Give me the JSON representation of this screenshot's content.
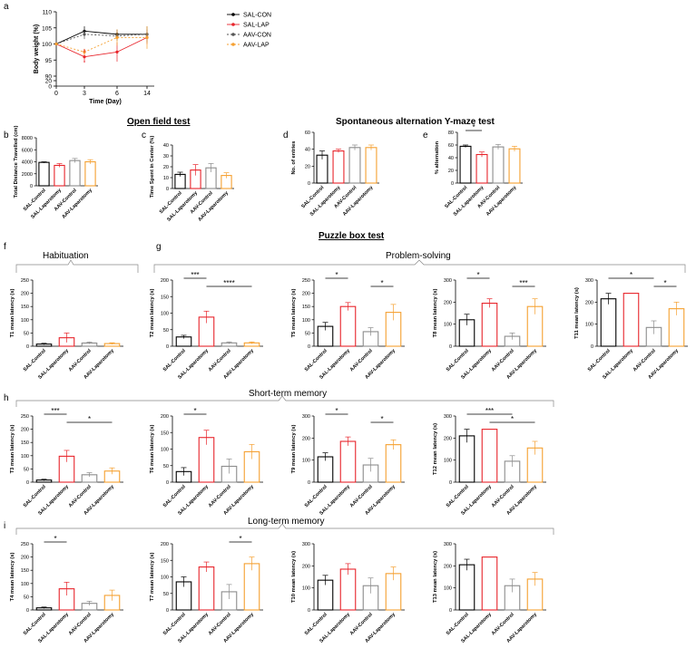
{
  "colors": {
    "sal_con": "#000000",
    "sal_lap": "#e8242b",
    "aav_con": "#8c8c8c",
    "aav_lap": "#f5a030"
  },
  "groups": [
    "SAL-Control",
    "SAL-Laparotomy",
    "AAV-Control",
    "AAV-Laparotomy"
  ],
  "section_titles": {
    "open_field": "Open field test",
    "yspont": "Spontaneous alternation Y-maze test",
    "puzzle": "Puzzle box test",
    "habituation": "Habituation",
    "problem": "Problem-solving",
    "short": "Short-term memory",
    "long": "Long-term memory"
  },
  "panel_letters": {
    "a": "a",
    "b": "b",
    "c": "c",
    "d": "d",
    "e": "e",
    "f": "f",
    "g": "g",
    "h": "h",
    "i": "i"
  },
  "chart_data": [
    {
      "id": "a",
      "type": "line",
      "xlabel": "Time (Day)",
      "ylabel": "Body weight (%)",
      "x": [
        0,
        3,
        6,
        14
      ],
      "xticks": [
        "0",
        "3",
        "6",
        "14"
      ],
      "yticks": [
        "0",
        "20",
        "90",
        "95",
        "100",
        "105",
        "110"
      ],
      "series": [
        {
          "name": "SAL-CON",
          "values": [
            100,
            104,
            103,
            103
          ],
          "err": [
            0,
            1.5,
            1.5,
            1.5
          ]
        },
        {
          "name": "SAL-LAP",
          "values": [
            100,
            96,
            97.5,
            102
          ],
          "err": [
            0,
            1.5,
            3,
            2
          ]
        },
        {
          "name": "AAV-CON",
          "values": [
            100,
            103,
            102.5,
            103
          ],
          "err": [
            0,
            1.5,
            1.5,
            2.5
          ]
        },
        {
          "name": "AAV-LAP",
          "values": [
            100,
            97.5,
            102,
            102
          ],
          "err": [
            0,
            1,
            2.5,
            3.5
          ]
        }
      ],
      "annotations": [
        "a",
        "*"
      ]
    },
    {
      "id": "b",
      "type": "bar",
      "ylabel": "Total Distance Travelled (cm)",
      "ymax": 8000,
      "yticks": [
        "0",
        "2000",
        "4000",
        "6000",
        "8000"
      ],
      "values": [
        3900,
        3400,
        4200,
        4000
      ],
      "err": [
        100,
        300,
        350,
        350
      ],
      "sig": []
    },
    {
      "id": "c",
      "type": "bar",
      "ylabel": "Time Spent in Center (%)",
      "ymax": 40,
      "yticks": [
        "0",
        "10",
        "20",
        "30",
        "40"
      ],
      "values": [
        13,
        17,
        19,
        12
      ],
      "err": [
        2,
        5,
        4,
        2.5
      ],
      "sig": []
    },
    {
      "id": "d",
      "type": "bar",
      "ylabel": "No. of entries",
      "ymax": 60,
      "yticks": [
        "0",
        "20",
        "40",
        "60"
      ],
      "values": [
        33,
        38,
        42,
        42
      ],
      "err": [
        5,
        2,
        3,
        3
      ],
      "sig": []
    },
    {
      "id": "e",
      "type": "bar",
      "ylabel": "% alternation",
      "ymax": 80,
      "yticks": [
        "0",
        "20",
        "40",
        "60",
        "80"
      ],
      "values": [
        58,
        45,
        57,
        54
      ],
      "err": [
        2,
        4,
        4,
        4
      ],
      "sig": [
        {
          "from": 0,
          "to": 1,
          "label": "*"
        }
      ]
    },
    {
      "id": "t1",
      "type": "bar",
      "ylabel": "T1 mean latency (s)",
      "ymax": 250,
      "yticks": [
        "0",
        "50",
        "100",
        "150",
        "200",
        "250"
      ],
      "values": [
        8,
        32,
        12,
        10
      ],
      "err": [
        3,
        18,
        4,
        3
      ],
      "sig": []
    },
    {
      "id": "t2",
      "type": "bar",
      "ylabel": "T2 mean latency (s)",
      "ymax": 200,
      "yticks": [
        "0",
        "50",
        "100",
        "150",
        "200"
      ],
      "values": [
        28,
        88,
        10,
        10
      ],
      "err": [
        5,
        18,
        3,
        3
      ],
      "sig": [
        {
          "from": 0,
          "to": 1,
          "label": "***"
        },
        {
          "from": 1,
          "to": 3,
          "label": "****"
        }
      ]
    },
    {
      "id": "t5",
      "type": "bar",
      "ylabel": "T5 mean latency (s)",
      "ymax": 250,
      "yticks": [
        "0",
        "50",
        "100",
        "150",
        "200",
        "250"
      ],
      "values": [
        75,
        150,
        55,
        128
      ],
      "err": [
        15,
        15,
        15,
        30
      ],
      "sig": [
        {
          "from": 0,
          "to": 1,
          "label": "*"
        },
        {
          "from": 2,
          "to": 3,
          "label": "*"
        }
      ]
    },
    {
      "id": "t8",
      "type": "bar",
      "ylabel": "T8 mean latency (s)",
      "ymax": 300,
      "yticks": [
        "0",
        "100",
        "200",
        "300"
      ],
      "values": [
        120,
        195,
        45,
        180
      ],
      "err": [
        25,
        20,
        15,
        35
      ],
      "sig": [
        {
          "from": 0,
          "to": 1,
          "label": "*"
        },
        {
          "from": 2,
          "to": 3,
          "label": "***"
        }
      ]
    },
    {
      "id": "t11",
      "type": "bar",
      "ylabel": "T11 mean latency (s)",
      "ymax": 300,
      "yticks": [
        "0",
        "100",
        "200",
        "300"
      ],
      "values": [
        215,
        240,
        85,
        170
      ],
      "err": [
        25,
        0,
        30,
        30
      ],
      "sig": [
        {
          "from": 0,
          "to": 2,
          "label": "*"
        },
        {
          "from": 2,
          "to": 3,
          "label": "*"
        }
      ]
    },
    {
      "id": "t3",
      "type": "bar",
      "ylabel": "T3 mean latency (s)",
      "ymax": 250,
      "yticks": [
        "0",
        "50",
        "100",
        "150",
        "200",
        "250"
      ],
      "values": [
        8,
        98,
        28,
        42
      ],
      "err": [
        3,
        22,
        8,
        12
      ],
      "sig": [
        {
          "from": 0,
          "to": 1,
          "label": "***"
        },
        {
          "from": 1,
          "to": 3,
          "label": "*"
        }
      ]
    },
    {
      "id": "t6",
      "type": "bar",
      "ylabel": "T6 mean latency (s)",
      "ymax": 200,
      "yticks": [
        "0",
        "50",
        "100",
        "150",
        "200"
      ],
      "values": [
        32,
        135,
        48,
        92
      ],
      "err": [
        12,
        22,
        22,
        22
      ],
      "sig": [
        {
          "from": 0,
          "to": 1,
          "label": "*"
        }
      ]
    },
    {
      "id": "t9",
      "type": "bar",
      "ylabel": "T9 mean latency (s)",
      "ymax": 300,
      "yticks": [
        "0",
        "100",
        "200",
        "300"
      ],
      "values": [
        115,
        185,
        78,
        170
      ],
      "err": [
        18,
        20,
        30,
        22
      ],
      "sig": [
        {
          "from": 0,
          "to": 1,
          "label": "*"
        },
        {
          "from": 2,
          "to": 3,
          "label": "*"
        }
      ]
    },
    {
      "id": "t12",
      "type": "bar",
      "ylabel": "T12 mean latency (s)",
      "ymax": 300,
      "yticks": [
        "0",
        "100",
        "200",
        "300"
      ],
      "values": [
        210,
        240,
        95,
        155
      ],
      "err": [
        30,
        0,
        25,
        30
      ],
      "sig": [
        {
          "from": 0,
          "to": 2,
          "label": "***"
        },
        {
          "from": 1,
          "to": 3,
          "label": "*"
        }
      ]
    },
    {
      "id": "t4",
      "type": "bar",
      "ylabel": "T4 mean latency (s)",
      "ymax": 250,
      "yticks": [
        "0",
        "50",
        "100",
        "150",
        "200",
        "250"
      ],
      "values": [
        8,
        80,
        25,
        55
      ],
      "err": [
        3,
        25,
        8,
        20
      ],
      "sig": [
        {
          "from": 0,
          "to": 1,
          "label": "*"
        }
      ]
    },
    {
      "id": "t7",
      "type": "bar",
      "ylabel": "T7 mean latency (s)",
      "ymax": 200,
      "yticks": [
        "0",
        "50",
        "100",
        "150",
        "200"
      ],
      "values": [
        85,
        130,
        55,
        140
      ],
      "err": [
        15,
        15,
        22,
        20
      ],
      "sig": [
        {
          "from": 2,
          "to": 3,
          "label": "*"
        }
      ]
    },
    {
      "id": "t10",
      "type": "bar",
      "ylabel": "T10 mean latency (s)",
      "ymax": 300,
      "yticks": [
        "0",
        "100",
        "200",
        "300"
      ],
      "values": [
        135,
        185,
        110,
        165
      ],
      "err": [
        22,
        25,
        35,
        30
      ],
      "sig": []
    },
    {
      "id": "t13",
      "type": "bar",
      "ylabel": "T13 mean latency (s)",
      "ymax": 300,
      "yticks": [
        "0",
        "100",
        "200",
        "300"
      ],
      "values": [
        205,
        240,
        110,
        140
      ],
      "err": [
        25,
        0,
        30,
        30
      ],
      "sig": []
    }
  ]
}
